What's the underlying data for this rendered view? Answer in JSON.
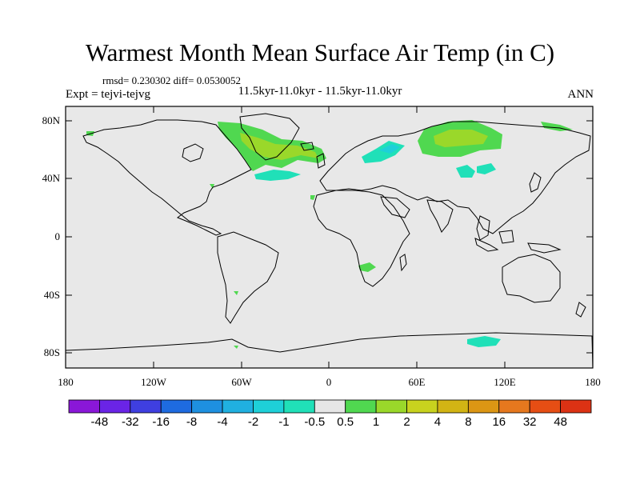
{
  "title": "Warmest Month Mean Surface Air Temp (in C)",
  "stats": "rmsd= 0.230302 diff= 0.0530052",
  "subtitle": "11.5kyr-11.0kyr - 11.5kyr-11.0kyr",
  "left_label": "Expt = tejvi-tejvg",
  "right_label": "ANN",
  "lat_ticks": [
    "80N",
    "40N",
    "0",
    "40S",
    "80S"
  ],
  "lon_ticks": [
    "180",
    "120W",
    "60W",
    "0",
    "60E",
    "120E",
    "180"
  ],
  "colorbar": {
    "colors": [
      "#8a17d8",
      "#6a24e6",
      "#3f3fe0",
      "#1e6be0",
      "#1e90e0",
      "#20b0e0",
      "#1ed0d8",
      "#20e0b8",
      "#e6e6e6",
      "#50d850",
      "#9ad82a",
      "#c8d21e",
      "#d2b414",
      "#dc9614",
      "#e6781e",
      "#e64e14",
      "#dc3214"
    ],
    "labels": [
      "-48",
      "-32",
      "-16",
      "-8",
      "-4",
      "-2",
      "-1",
      "-0.5",
      "0.5",
      "1",
      "2",
      "4",
      "8",
      "16",
      "32",
      "48"
    ]
  },
  "map": {
    "background": "#e8e8e8",
    "lat_range": [
      -90,
      90
    ],
    "lon_range": [
      -180,
      180
    ]
  }
}
